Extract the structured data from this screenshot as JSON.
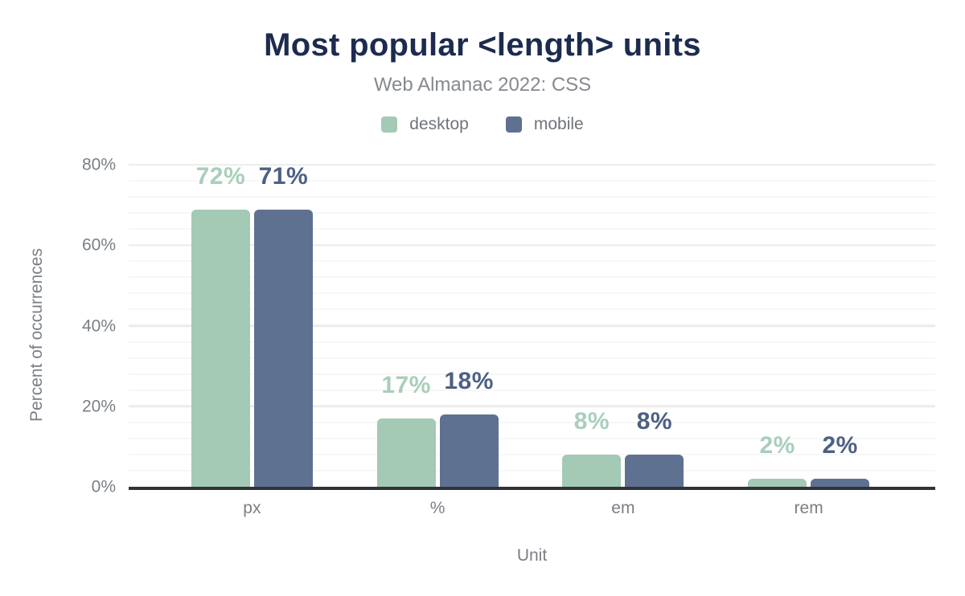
{
  "header": {
    "title": "Most popular <length> units",
    "subtitle": "Web Almanac 2022: CSS"
  },
  "colors": {
    "title": "#1c2b4e",
    "subtitle_gray": "#85898f",
    "axis_gray": "#7a7f85",
    "baseline": "#303338",
    "major_gridline": "#ececec",
    "minor_gridline": "#f7f7f7",
    "desktop": "#a4c9b4",
    "mobile": "#5f7190",
    "desktop_label": "#a9ceba",
    "mobile_label": "#4c6085"
  },
  "chart_data": {
    "type": "bar",
    "title": "Most popular <length> units",
    "subtitle": "Web Almanac 2022: CSS",
    "categories": [
      "px",
      "%",
      "em",
      "rem"
    ],
    "series": [
      {
        "name": "desktop",
        "color": "#a4c9b4",
        "label_color": "#a9ceba",
        "values": [
          72,
          17,
          8,
          2
        ],
        "labels": [
          "72%",
          "17%",
          "8%",
          "2%"
        ]
      },
      {
        "name": "mobile",
        "color": "#5f7190",
        "label_color": "#4c6085",
        "values": [
          71,
          18,
          8,
          2
        ],
        "labels": [
          "71%",
          "18%",
          "8%",
          "2%"
        ]
      }
    ],
    "xlabel": "Unit",
    "ylabel": "Percent of occurrences",
    "ylim": [
      0,
      80
    ],
    "yticks": [
      "0%",
      "20%",
      "40%",
      "60%",
      "80%"
    ],
    "grid": {
      "minor_step": 4,
      "major_step": 20,
      "visible": true
    },
    "legend_position": "top",
    "data_labels": true
  }
}
